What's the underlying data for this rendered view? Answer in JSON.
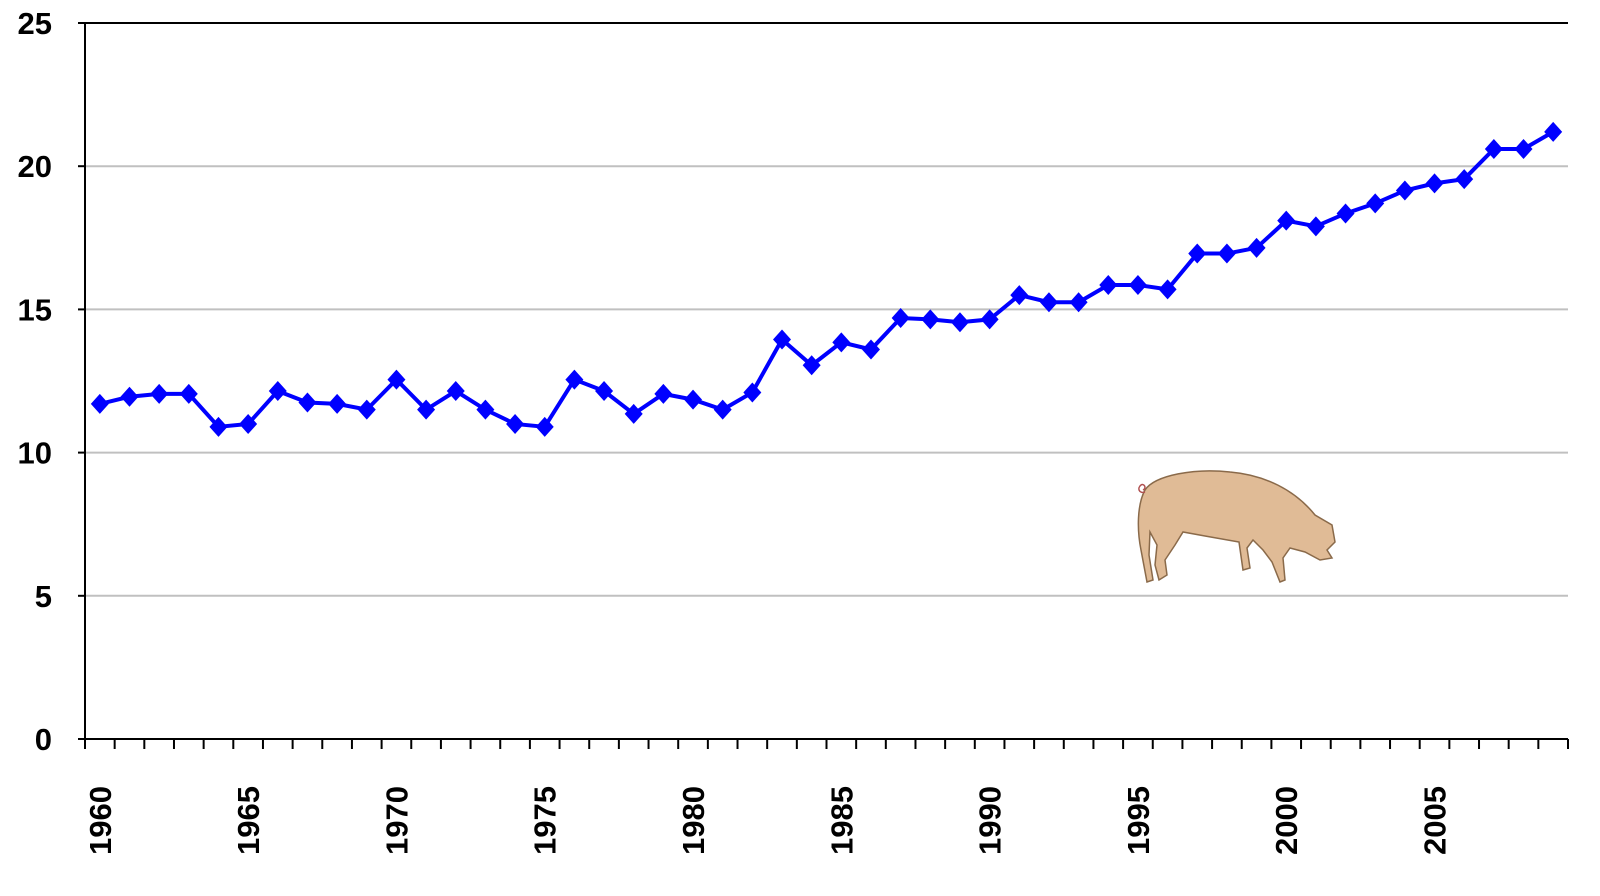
{
  "chart_data": {
    "type": "line",
    "categories": [
      "1960",
      null,
      null,
      null,
      null,
      "1965",
      null,
      null,
      null,
      null,
      "1970",
      null,
      null,
      null,
      null,
      "1975",
      null,
      null,
      null,
      null,
      "1980",
      null,
      null,
      null,
      null,
      "1985",
      null,
      null,
      null,
      null,
      "1990",
      null,
      null,
      null,
      null,
      "1995",
      null,
      null,
      null,
      null,
      "2000",
      null,
      null,
      null,
      null,
      "2005",
      null,
      null,
      null,
      null
    ],
    "series": [
      {
        "color": "#0000ff",
        "values": [
          11.7,
          11.95,
          12.05,
          12.05,
          10.9,
          11.0,
          12.15,
          11.75,
          11.7,
          11.5,
          12.55,
          11.5,
          12.15,
          11.5,
          11.0,
          10.9,
          12.55,
          12.15,
          11.35,
          12.05,
          11.85,
          11.5,
          12.1,
          13.95,
          13.05,
          13.85,
          13.6,
          14.7,
          14.65,
          14.55,
          14.65,
          15.5,
          15.25,
          15.25,
          15.85,
          15.85,
          15.7,
          16.95,
          16.95,
          17.15,
          18.1,
          17.9,
          18.35,
          18.7,
          19.15,
          19.4,
          19.55,
          20.6,
          20.6,
          21.2
        ]
      }
    ],
    "ylim": [
      0,
      25
    ],
    "yticks": [
      0,
      5,
      10,
      15,
      20,
      25
    ],
    "grid": true
  }
}
